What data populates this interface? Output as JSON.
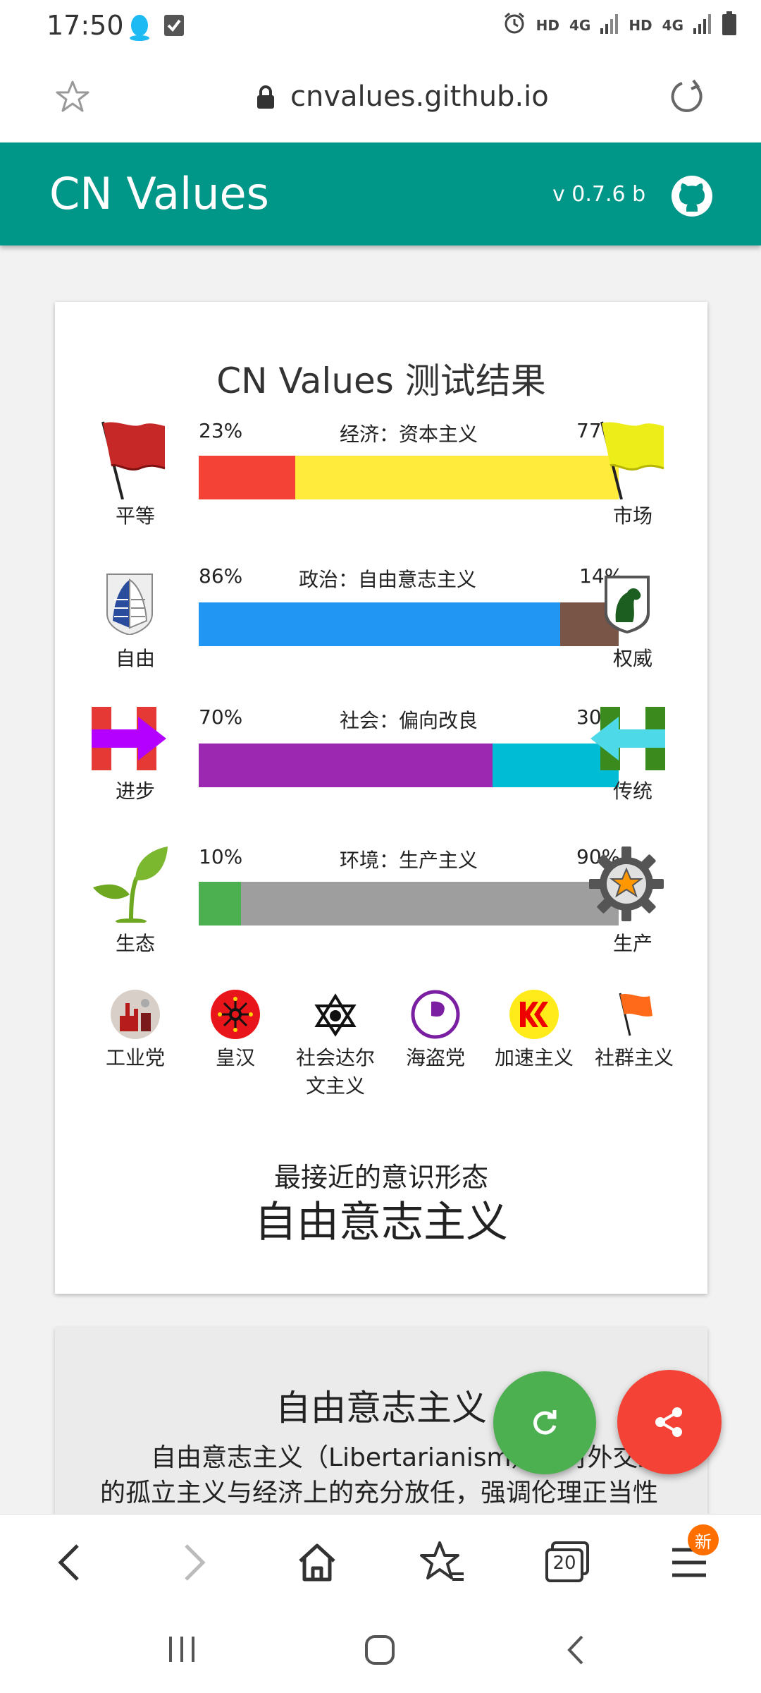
{
  "status_bar": {
    "time": "17:50",
    "hd1": "HD",
    "g1": "4G",
    "hd2": "HD",
    "g2": "4G"
  },
  "browser": {
    "url": "cnvalues.github.io"
  },
  "app": {
    "title": "CN Values",
    "version": "v 0.7.6 b"
  },
  "results": {
    "title": "CN Values 测试结果",
    "axes": [
      {
        "left_label": "平等",
        "right_label": "市场",
        "axis_label": "经济：资本主义",
        "left_pct": "23%",
        "right_pct": "77%",
        "left_value": 23,
        "right_value": 77,
        "left_color": "#f44336",
        "right_color": "#ffeb3b",
        "left_icon": "red-flag-icon",
        "right_icon": "yellow-flag-icon"
      },
      {
        "left_label": "自由",
        "right_label": "权威",
        "axis_label": "政治：自由意志主义",
        "left_pct": "86%",
        "right_pct": "14%",
        "left_value": 86,
        "right_value": 14,
        "left_color": "#2196f3",
        "right_color": "#795548",
        "left_icon": "wings-emblem-icon",
        "right_icon": "horse-emblem-icon"
      },
      {
        "left_label": "进步",
        "right_label": "传统",
        "axis_label": "社会：偏向改良",
        "left_pct": "70%",
        "right_pct": "30%",
        "left_value": 70,
        "right_value": 30,
        "left_color": "#9c27b0",
        "right_color": "#00bcd4",
        "left_icon": "right-arrow-h-icon",
        "right_icon": "left-arrow-h-icon"
      },
      {
        "left_label": "生态",
        "right_label": "生产",
        "axis_label": "环境：生产主义",
        "left_pct": "10%",
        "right_pct": "90%",
        "left_value": 10,
        "right_value": 90,
        "left_color": "#4caf50",
        "right_color": "#9e9e9e",
        "left_icon": "sprout-icon",
        "right_icon": "gear-star-icon"
      }
    ],
    "ideologies": [
      {
        "label": "工业党",
        "icon": "industry-party-icon"
      },
      {
        "label": "皇汉",
        "icon": "sun-emblem-icon"
      },
      {
        "label": "社会达尔文主义",
        "line1": "社会达尔",
        "line2": "文主义",
        "icon": "triangle-emblem-icon"
      },
      {
        "label": "海盗党",
        "icon": "pirate-flag-icon"
      },
      {
        "label": "加速主义",
        "icon": "kk-icon"
      },
      {
        "label": "社群主义",
        "icon": "orange-flag-icon"
      }
    ],
    "closest_label": "最接近的意识形态",
    "closest_value": "自由意志主义"
  },
  "description": {
    "title": "自由意志主义",
    "text": "自由意志主义（Libertarianism）是对外交上的孤立主义与经济上的充分放任，强调伦理正当性而非功利，以及对国警等国家最大的抗拒。"
  },
  "bottom_nav": {
    "tabs_count": "20",
    "badge": "新"
  }
}
